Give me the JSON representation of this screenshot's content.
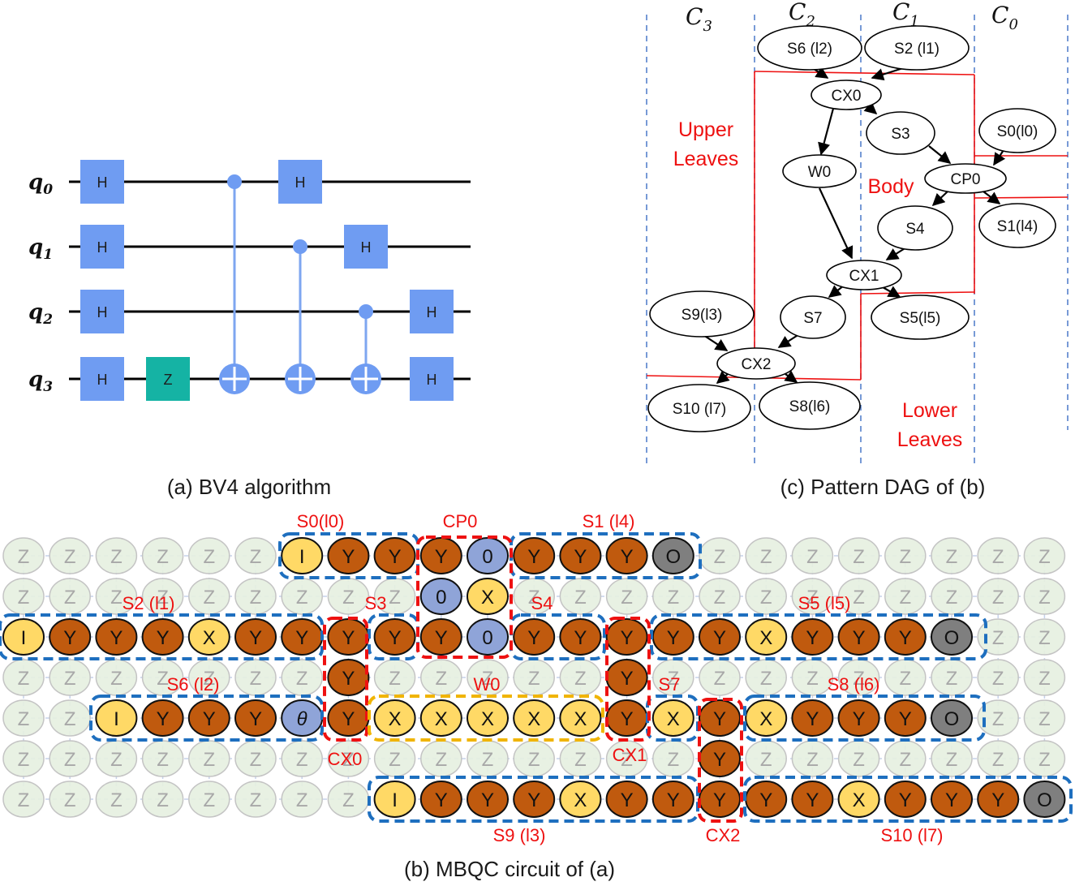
{
  "captions": {
    "a": "(a) BV4 algorithm",
    "b": "(b) MBQC circuit of (a)",
    "c": "(c) Pattern DAG of (b)"
  },
  "circuit": {
    "qubits": [
      "q0",
      "q1",
      "q2",
      "q3"
    ],
    "gates": {
      "h": "H",
      "z": "Z"
    }
  },
  "dag": {
    "columns": [
      "C3",
      "C2",
      "C1",
      "C0"
    ],
    "nodes": {
      "s6": "S6 (l2)",
      "s2": "S2 (l1)",
      "cx0": "CX0",
      "s3": "S3",
      "s0": "S0(l0)",
      "w0": "W0",
      "cp0": "CP0",
      "s4": "S4",
      "s1": "S1(l4)",
      "cx1": "CX1",
      "s9": "S9(l3)",
      "s7": "S7",
      "s5": "S5(l5)",
      "cx2": "CX2",
      "s10": "S10 (l7)",
      "s8": "S8(l6)"
    },
    "region_labels": {
      "upper_leaves": [
        "Upper",
        "Leaves"
      ],
      "body": "Body",
      "lower_leaves": [
        "Lower",
        "Leaves"
      ]
    }
  },
  "mbqc": {
    "labels": {
      "s0": "S0(l0)",
      "cp0": "CP0",
      "s1": "S1 (l4)",
      "s2": "S2 (l1)",
      "s3": "S3",
      "s4": "S4",
      "s5": "S5 (l5)",
      "s6": "S6 (l2)",
      "w0": "W0",
      "s8": "S8 (l6)",
      "s7": "S7",
      "cx0": "CX0",
      "cx1": "CX1",
      "cx2": "CX2",
      "s9": "S9 (l3)",
      "s10": "S10 (l7)"
    },
    "rows": [
      "ZZZZZZIYYY0YYYOZZZZZZZZ",
      "ZZZZZZZZZ0XZZZZZZZZZZZZ",
      "IYYYXYYYYY0YYYYYXYYYOZZ",
      "ZZZZZZZYZZZZZYZZZZZZZZZ",
      "ZZIYYYθYXXXXXYXYXYYYOZZ",
      "ZZZZZZZZZZZZZZZYZZZZZZZ",
      "ZZZZZZZZIYYYXYYYYYXYYYO"
    ],
    "colors": {
      "Z": "#e6f0e0",
      "Y": "#c05a0e",
      "X": "#ffd966",
      "I": "#ffd966",
      "O": "#7f7f7f",
      "0": "#8fa4d8",
      "theta": "#8fa4d8",
      "blue_box": "#1e6fbf",
      "red_box": "#ee1111",
      "yellow_box": "#f0b400"
    }
  }
}
